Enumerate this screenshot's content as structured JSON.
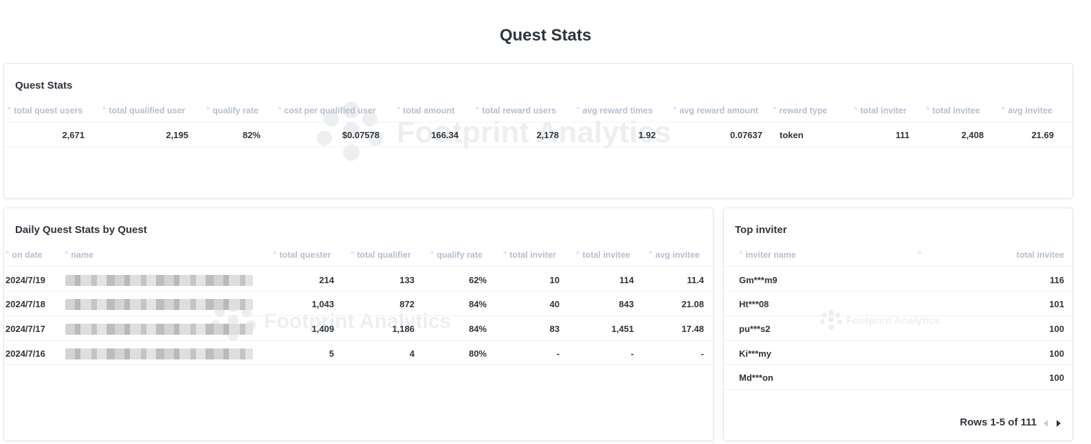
{
  "page": {
    "title": "Quest Stats"
  },
  "watermark": {
    "text": "Footprint Analytics"
  },
  "summary": {
    "title": "Quest Stats",
    "columns": [
      "total quest users",
      "total qualified user",
      "qualify rate",
      "cost per qualified user",
      "total amount",
      "total reward users",
      "avg reward times",
      "avg reward amount",
      "reward type",
      "total inviter",
      "total invitee",
      "avg invitee"
    ],
    "row": [
      "2,671",
      "2,195",
      "82%",
      "$0.07578",
      "166.34",
      "2,178",
      "1.92",
      "0.07637",
      "token",
      "111",
      "2,408",
      "21.69"
    ]
  },
  "daily": {
    "title": "Daily Quest Stats by Quest",
    "columns": [
      "on date",
      "name",
      "total quester",
      "total qualifier",
      "qualify rate",
      "total inviter",
      "total invitee",
      "avg invitee"
    ],
    "rows": [
      {
        "date": "2024/7/19",
        "quester": "214",
        "qualifier": "133",
        "rate": "62%",
        "inviter": "10",
        "invitee": "114",
        "avg": "11.4"
      },
      {
        "date": "2024/7/18",
        "quester": "1,043",
        "qualifier": "872",
        "rate": "84%",
        "inviter": "40",
        "invitee": "843",
        "avg": "21.08"
      },
      {
        "date": "2024/7/17",
        "quester": "1,409",
        "qualifier": "1,186",
        "rate": "84%",
        "inviter": "83",
        "invitee": "1,451",
        "avg": "17.48"
      },
      {
        "date": "2024/7/16",
        "quester": "5",
        "qualifier": "4",
        "rate": "80%",
        "inviter": "-",
        "invitee": "-",
        "avg": "-"
      }
    ]
  },
  "top_inviter": {
    "title": "Top inviter",
    "columns": [
      "inviter name",
      "total invitee"
    ],
    "rows": [
      {
        "name": "Gm***m9",
        "invitee": "116"
      },
      {
        "name": "Ht***08",
        "invitee": "101"
      },
      {
        "name": "pu***s2",
        "invitee": "100"
      },
      {
        "name": "Ki***my",
        "invitee": "100"
      },
      {
        "name": "Md***on",
        "invitee": "100"
      }
    ],
    "pagination": "Rows 1-5 of 111"
  }
}
